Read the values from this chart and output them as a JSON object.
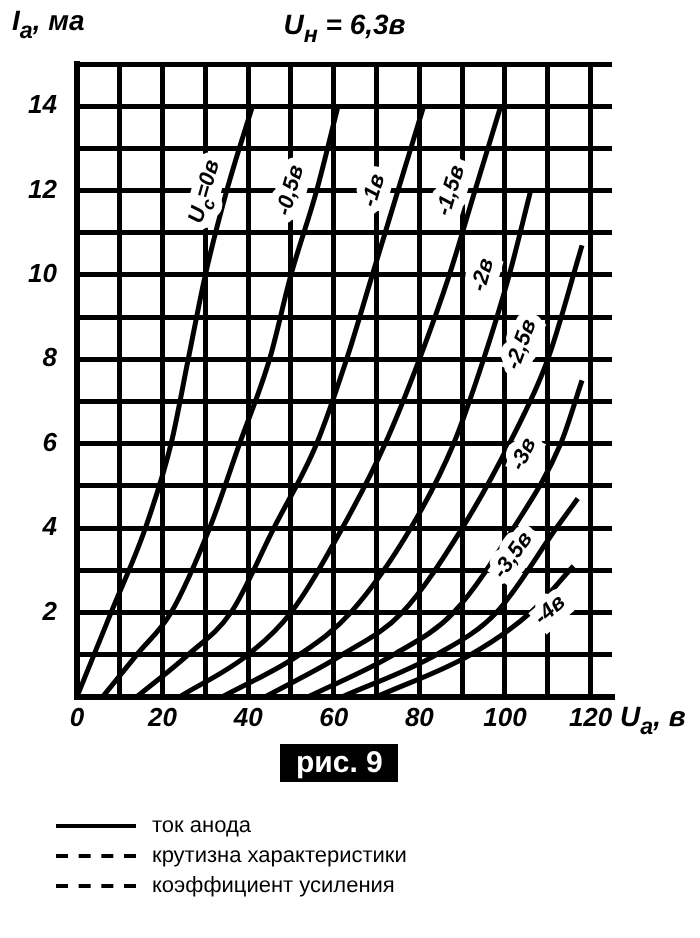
{
  "chart_data": {
    "type": "line",
    "title": "U$_{н}$ = 6,3в",
    "xlabel": "U$_{а}$, в",
    "ylabel": "I$_{а}$, ма",
    "xlim": [
      0,
      125
    ],
    "ylim": [
      0,
      15
    ],
    "xticks": [
      0,
      {
        "value": 10,
        "label": null
      },
      20,
      {
        "value": 30,
        "label": null
      },
      40,
      {
        "value": 50,
        "label": null
      },
      60,
      {
        "value": 70,
        "label": null
      },
      80,
      {
        "value": 90,
        "label": null
      },
      100,
      {
        "value": 110,
        "label": null
      },
      120
    ],
    "yticks": [
      {
        "value": 0,
        "label": null
      },
      {
        "value": 1,
        "label": null
      },
      2,
      {
        "value": 3,
        "label": null
      },
      4,
      {
        "value": 5,
        "label": null
      },
      6,
      {
        "value": 7,
        "label": null
      },
      8,
      {
        "value": 9,
        "label": null
      },
      10,
      {
        "value": 11,
        "label": null
      },
      12,
      {
        "value": 13,
        "label": null
      },
      14,
      {
        "value": 15,
        "label": null
      }
    ],
    "grid": true,
    "legend": false,
    "marker": "none",
    "line_style": "solid",
    "series": [
      {
        "name": "U$_{с}$=0в",
        "color": "#000000",
        "x": [
          0,
          4,
          8,
          16,
          22,
          26,
          30,
          35,
          41
        ],
        "values": [
          0,
          1,
          2,
          4,
          6,
          8,
          10,
          12,
          14
        ]
      },
      {
        "name": "-0,5в",
        "color": "#000000",
        "x": [
          6,
          14,
          22,
          31,
          38,
          45,
          50,
          56,
          61
        ],
        "values": [
          0,
          1,
          2,
          4,
          6,
          8,
          10,
          12,
          14
        ]
      },
      {
        "name": "-1в",
        "color": "#000000",
        "x": [
          14,
          26,
          36,
          46,
          56,
          63,
          69,
          75,
          81
        ],
        "values": [
          0,
          1,
          2,
          4,
          6,
          8,
          10,
          12,
          14
        ]
      },
      {
        "name": "-1,5в",
        "color": "#000000",
        "x": [
          24,
          40,
          50,
          62,
          72,
          80,
          87,
          93,
          99
        ],
        "values": [
          0,
          1,
          2,
          4,
          6,
          8,
          10,
          12,
          14
        ]
      },
      {
        "name": "-2в",
        "color": "#000000",
        "x": [
          34,
          52,
          64,
          78,
          88,
          95,
          101,
          106
        ],
        "values": [
          0,
          1,
          2,
          4,
          6,
          8,
          10,
          12
        ]
      },
      {
        "name": "-2,5в",
        "color": "#000000",
        "x": [
          44,
          62,
          76,
          90,
          101,
          110,
          118
        ],
        "values": [
          0,
          1,
          2,
          4,
          6,
          8,
          10.7
        ]
      },
      {
        "name": "-3в",
        "color": "#000000",
        "x": [
          54,
          74,
          88,
          102,
          113,
          118
        ],
        "values": [
          0,
          1,
          2,
          4,
          6,
          7.5
        ]
      },
      {
        "name": "-3,5в",
        "color": "#000000",
        "x": [
          62,
          84,
          98,
          112,
          117
        ],
        "values": [
          0,
          1,
          2,
          4,
          4.7
        ]
      },
      {
        "name": "-4в",
        "color": "#000000",
        "x": [
          70,
          92,
          106,
          116
        ],
        "values": [
          0,
          1,
          2,
          3.1
        ]
      }
    ],
    "annotations": [
      "рис. 9",
      "ток анода",
      "крутизна характеристики",
      "коэффициент усиления"
    ]
  }
}
